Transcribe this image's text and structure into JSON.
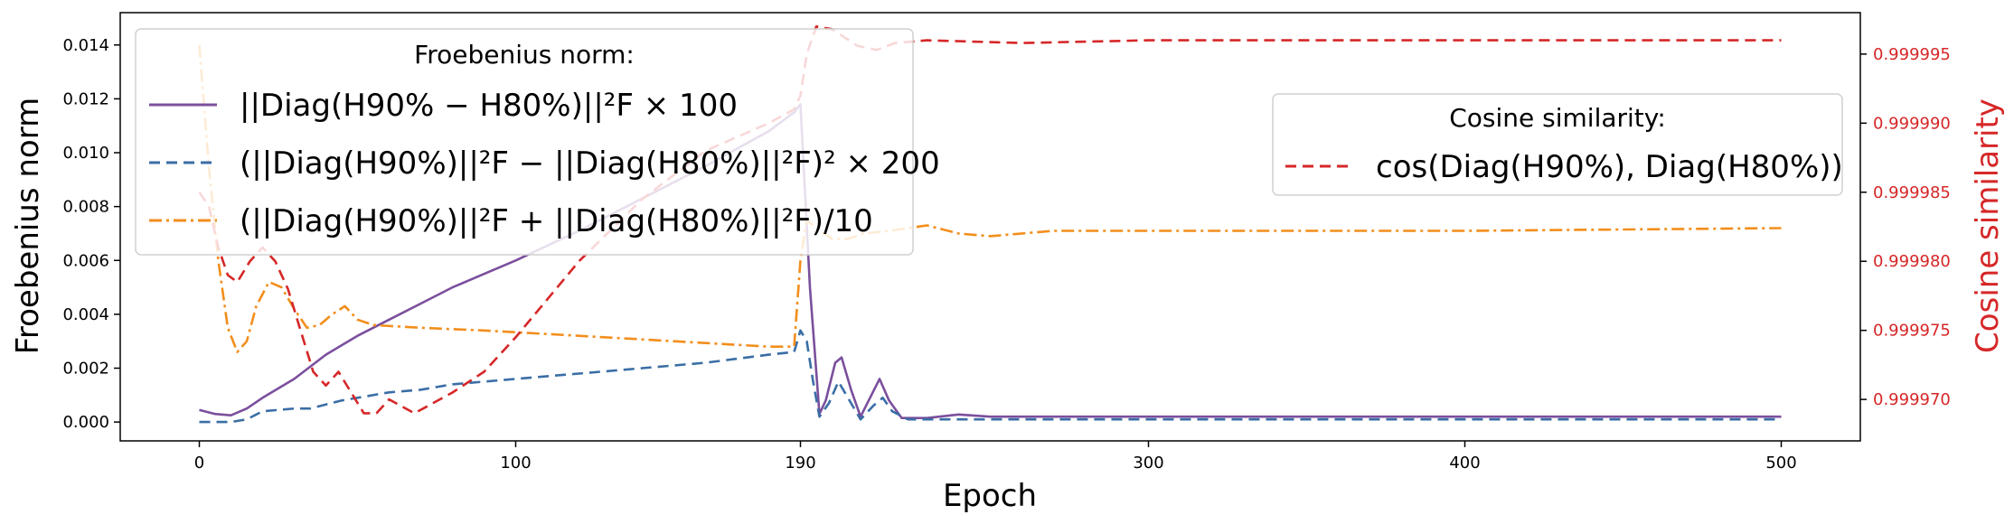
{
  "chart_data": {
    "type": "line",
    "xlabel": "Epoch",
    "ylabel_left": "Froebenius norm",
    "ylabel_right": "Cosine similarity",
    "xlim": [
      -25,
      525
    ],
    "ylim_left": [
      -0.0007,
      0.0152
    ],
    "ylim_right": [
      0.999967,
      0.999998
    ],
    "x_ticks": [
      0,
      100,
      190,
      300,
      400,
      500
    ],
    "y_ticks_left": [
      "0.000",
      "0.002",
      "0.004",
      "0.006",
      "0.008",
      "0.010",
      "0.012",
      "0.014"
    ],
    "y_ticks_right": [
      "0.999970",
      "0.999975",
      "0.999980",
      "0.999985",
      "0.999990",
      "0.999995"
    ],
    "legend_left": {
      "title": "Froebenius norm:",
      "entries": [
        {
          "label": "||Diag(H90% − H80%)||²F × 100",
          "color": "#6a3d9a",
          "dash": "solid"
        },
        {
          "label": "(||Diag(H90%)||²F − ||Diag(H80%)||²F)² × 200",
          "color": "#3a6ea5",
          "dash": "dashed"
        },
        {
          "label": "(||Diag(H90%)||²F + ||Diag(H80%)||²F)/10",
          "color": "#f28e1c",
          "dash": "dashdot"
        }
      ]
    },
    "legend_right": {
      "title": "Cosine similarity:",
      "entries": [
        {
          "label": "cos(Diag(H90%), Diag(H80%))",
          "color": "#d62728",
          "dash": "dashed"
        }
      ]
    },
    "series": [
      {
        "axis": "left",
        "color": "#7b4f9d",
        "dash": "solid",
        "points": [
          [
            0,
            0.00045
          ],
          [
            5,
            0.0003
          ],
          [
            10,
            0.00025
          ],
          [
            15,
            0.0005
          ],
          [
            20,
            0.0009
          ],
          [
            30,
            0.0016
          ],
          [
            40,
            0.0025
          ],
          [
            50,
            0.0032
          ],
          [
            60,
            0.0038
          ],
          [
            70,
            0.0044
          ],
          [
            80,
            0.005
          ],
          [
            90,
            0.0055
          ],
          [
            100,
            0.006
          ],
          [
            120,
            0.0071
          ],
          [
            140,
            0.0083
          ],
          [
            160,
            0.0095
          ],
          [
            180,
            0.0108
          ],
          [
            188,
            0.0115
          ],
          [
            190,
            0.0118
          ],
          [
            193,
            0.005
          ],
          [
            196,
            0.0003
          ],
          [
            198,
            0.0008
          ],
          [
            201,
            0.0022
          ],
          [
            203,
            0.0024
          ],
          [
            206,
            0.0012
          ],
          [
            209,
            0.0002
          ],
          [
            212,
            0.0009
          ],
          [
            215,
            0.0016
          ],
          [
            218,
            0.0008
          ],
          [
            222,
            0.00015
          ],
          [
            230,
            0.00015
          ],
          [
            240,
            0.00028
          ],
          [
            250,
            0.0002
          ],
          [
            260,
            0.0002
          ],
          [
            300,
            0.0002
          ],
          [
            400,
            0.0002
          ],
          [
            500,
            0.0002
          ]
        ]
      },
      {
        "axis": "left",
        "color": "#3a6ea5",
        "dash": "dashed",
        "points": [
          [
            0,
            0.0
          ],
          [
            10,
            0.0
          ],
          [
            15,
            0.0001
          ],
          [
            20,
            0.0004
          ],
          [
            30,
            0.0005
          ],
          [
            35,
            0.0005
          ],
          [
            45,
            0.0008
          ],
          [
            50,
            0.0009
          ],
          [
            60,
            0.0011
          ],
          [
            70,
            0.0012
          ],
          [
            80,
            0.0014
          ],
          [
            100,
            0.0016
          ],
          [
            120,
            0.0018
          ],
          [
            140,
            0.002
          ],
          [
            160,
            0.0022
          ],
          [
            180,
            0.0025
          ],
          [
            188,
            0.0026
          ],
          [
            190,
            0.0034
          ],
          [
            192,
            0.003
          ],
          [
            194,
            0.0015
          ],
          [
            196,
            0.0002
          ],
          [
            199,
            0.0007
          ],
          [
            202,
            0.0015
          ],
          [
            205,
            0.0009
          ],
          [
            209,
            0.0001
          ],
          [
            213,
            0.0006
          ],
          [
            216,
            0.0009
          ],
          [
            219,
            0.0004
          ],
          [
            224,
            0.0001
          ],
          [
            240,
            0.0001
          ],
          [
            300,
            0.0001
          ],
          [
            400,
            0.0001
          ],
          [
            500,
            0.0001
          ]
        ]
      },
      {
        "axis": "left",
        "color": "#f28e1c",
        "dash": "dashdot",
        "points": [
          [
            0,
            0.014
          ],
          [
            3,
            0.0095
          ],
          [
            6,
            0.006
          ],
          [
            9,
            0.0035
          ],
          [
            12,
            0.0026
          ],
          [
            15,
            0.003
          ],
          [
            18,
            0.0043
          ],
          [
            22,
            0.0052
          ],
          [
            26,
            0.005
          ],
          [
            30,
            0.0042
          ],
          [
            34,
            0.0035
          ],
          [
            38,
            0.0036
          ],
          [
            42,
            0.004
          ],
          [
            46,
            0.0043
          ],
          [
            50,
            0.0038
          ],
          [
            55,
            0.0036
          ],
          [
            70,
            0.0035
          ],
          [
            90,
            0.0034
          ],
          [
            120,
            0.0032
          ],
          [
            150,
            0.003
          ],
          [
            180,
            0.0028
          ],
          [
            188,
            0.0028
          ],
          [
            190,
            0.006
          ],
          [
            192,
            0.0075
          ],
          [
            195,
            0.0072
          ],
          [
            200,
            0.0068
          ],
          [
            205,
            0.0068
          ],
          [
            210,
            0.007
          ],
          [
            218,
            0.0071
          ],
          [
            230,
            0.0073
          ],
          [
            240,
            0.007
          ],
          [
            250,
            0.0069
          ],
          [
            270,
            0.0071
          ],
          [
            300,
            0.0071
          ],
          [
            400,
            0.0071
          ],
          [
            500,
            0.0072
          ]
        ]
      },
      {
        "axis": "right",
        "color": "#d62728",
        "dash": "dashed",
        "points": [
          [
            0,
            0.999985
          ],
          [
            3,
            0.999984
          ],
          [
            6,
            0.999981
          ],
          [
            9,
            0.999979
          ],
          [
            12,
            0.9999785
          ],
          [
            16,
            0.99998
          ],
          [
            20,
            0.999981
          ],
          [
            24,
            0.99998
          ],
          [
            28,
            0.999978
          ],
          [
            32,
            0.999975
          ],
          [
            36,
            0.999972
          ],
          [
            40,
            0.999971
          ],
          [
            44,
            0.999972
          ],
          [
            48,
            0.9999705
          ],
          [
            52,
            0.999969
          ],
          [
            56,
            0.999969
          ],
          [
            60,
            0.99997
          ],
          [
            64,
            0.9999695
          ],
          [
            68,
            0.999969
          ],
          [
            72,
            0.9999695
          ],
          [
            76,
            0.99997
          ],
          [
            80,
            0.9999705
          ],
          [
            90,
            0.999972
          ],
          [
            100,
            0.9999745
          ],
          [
            120,
            0.99998
          ],
          [
            140,
            0.9999845
          ],
          [
            160,
            0.999988
          ],
          [
            180,
            0.99999
          ],
          [
            188,
            0.999991
          ],
          [
            190,
            0.999992
          ],
          [
            192,
            0.999995
          ],
          [
            195,
            0.999997
          ],
          [
            200,
            0.9999968
          ],
          [
            208,
            0.9999956
          ],
          [
            214,
            0.9999953
          ],
          [
            220,
            0.9999958
          ],
          [
            230,
            0.999996
          ],
          [
            260,
            0.9999958
          ],
          [
            300,
            0.999996
          ],
          [
            350,
            0.999996
          ],
          [
            400,
            0.999996
          ],
          [
            450,
            0.999996
          ],
          [
            500,
            0.999996
          ]
        ]
      }
    ]
  }
}
